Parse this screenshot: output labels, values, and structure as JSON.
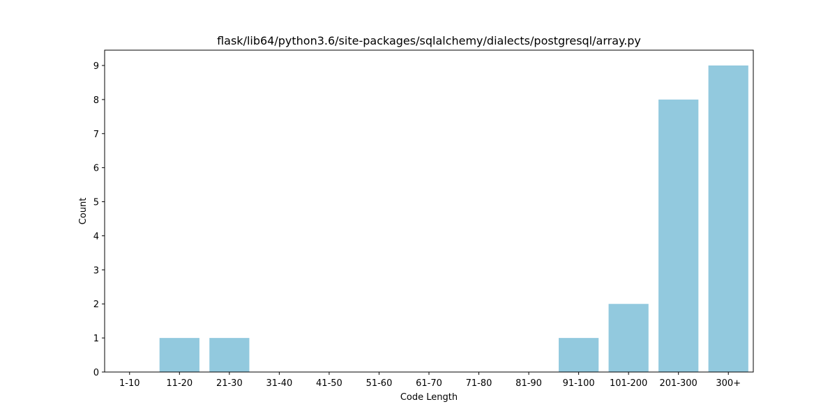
{
  "chart_data": {
    "type": "bar",
    "title": "flask/lib64/python3.6/site-packages/sqlalchemy/dialects/postgresql/array.py",
    "xlabel": "Code Length",
    "ylabel": "Count",
    "categories": [
      "1-10",
      "11-20",
      "21-30",
      "31-40",
      "41-50",
      "51-60",
      "61-70",
      "71-80",
      "81-90",
      "91-100",
      "101-200",
      "201-300",
      "300+"
    ],
    "values": [
      0,
      1,
      1,
      0,
      0,
      0,
      0,
      0,
      0,
      1,
      2,
      8,
      9
    ],
    "ylim": [
      0,
      9.45
    ],
    "yticks": [
      0,
      1,
      2,
      3,
      4,
      5,
      6,
      7,
      8,
      9
    ],
    "grid": false,
    "colors": {
      "bar": "#92c9de"
    }
  }
}
